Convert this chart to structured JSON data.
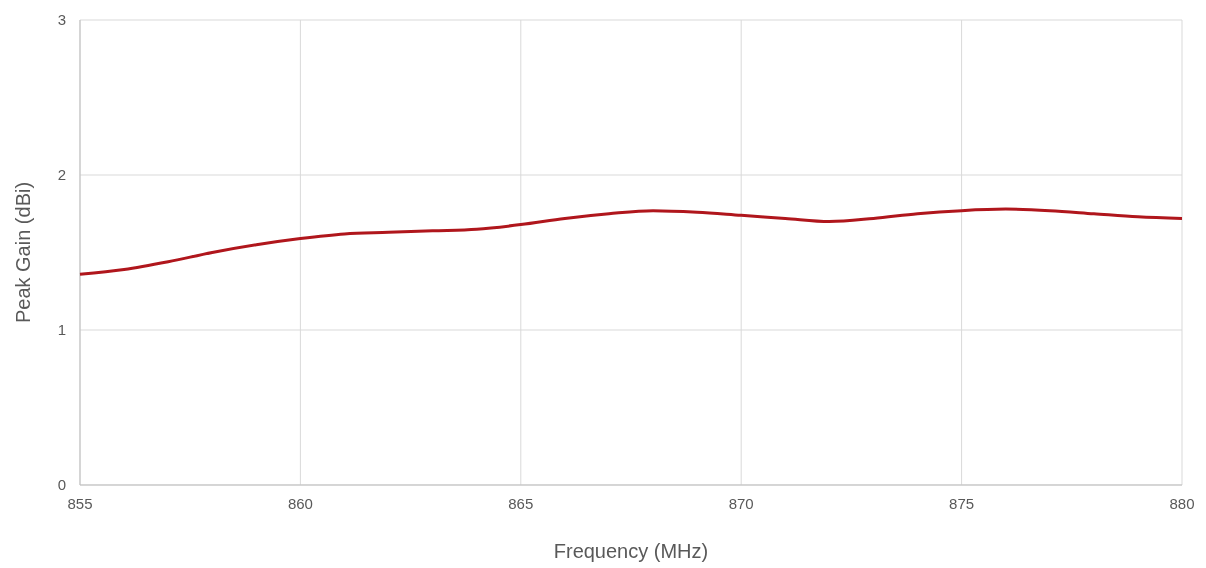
{
  "chart_data": {
    "type": "line",
    "xlabel": "Frequency (MHz)",
    "ylabel": "Peak Gain (dBi)",
    "x": [
      855,
      856,
      857,
      858,
      859,
      860,
      861,
      862,
      863,
      864,
      865,
      866,
      867,
      868,
      869,
      870,
      871,
      872,
      873,
      874,
      875,
      876,
      877,
      878,
      879,
      880
    ],
    "series": [
      {
        "color": "#b0161c",
        "values": [
          1.36,
          1.39,
          1.44,
          1.5,
          1.55,
          1.59,
          1.62,
          1.63,
          1.64,
          1.65,
          1.68,
          1.72,
          1.75,
          1.77,
          1.76,
          1.74,
          1.72,
          1.7,
          1.72,
          1.75,
          1.77,
          1.78,
          1.77,
          1.75,
          1.73,
          1.72
        ]
      }
    ],
    "xlim": [
      855,
      880
    ],
    "xticks": [
      855,
      860,
      865,
      870,
      875,
      880
    ],
    "ylim": [
      0,
      3
    ],
    "yticks": [
      0,
      1,
      2,
      3
    ],
    "grid": true,
    "marker": "none",
    "line_style": "solid"
  }
}
